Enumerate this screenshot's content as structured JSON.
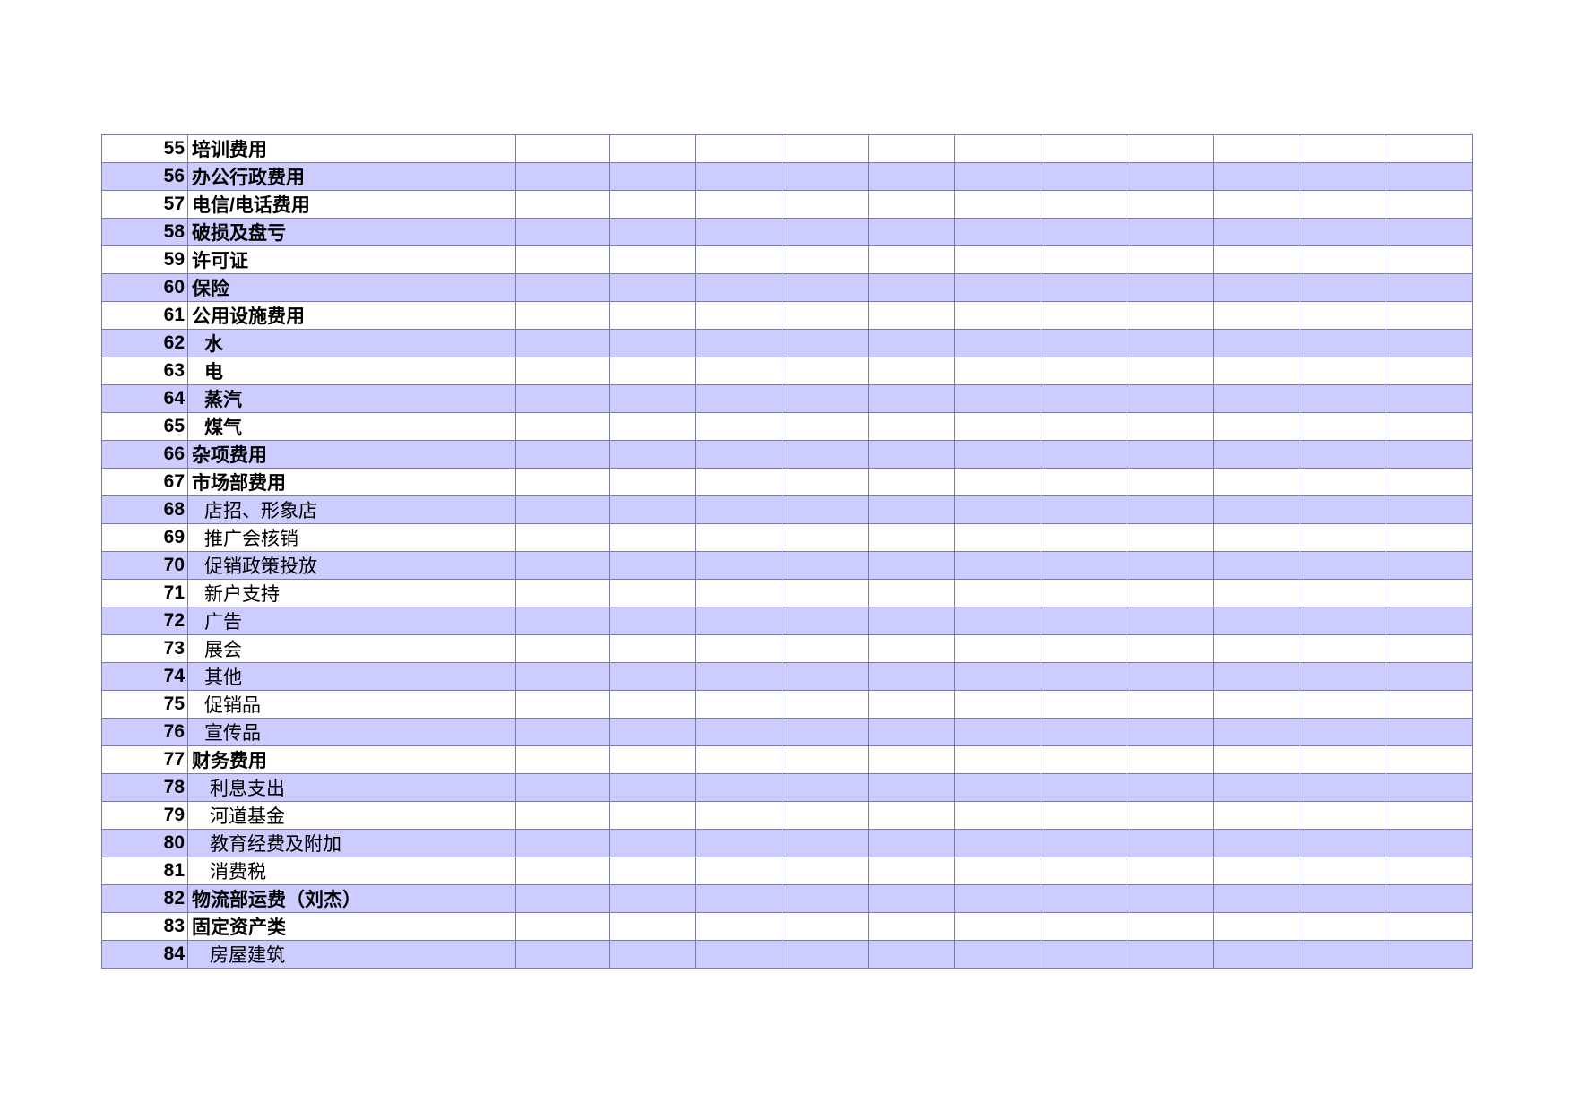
{
  "table": {
    "rows": [
      {
        "no": "55",
        "label": "培训费用"
      },
      {
        "no": "56",
        "label": "办公行政费用"
      },
      {
        "no": "57",
        "label": "电信/电话费用"
      },
      {
        "no": "58",
        "label": "破损及盘亏"
      },
      {
        "no": "59",
        "label": "许可证"
      },
      {
        "no": "60",
        "label": "保险"
      },
      {
        "no": "61",
        "label": "公用设施费用"
      },
      {
        "no": "62",
        "label": "水"
      },
      {
        "no": "63",
        "label": "电"
      },
      {
        "no": "64",
        "label": "蒸汽"
      },
      {
        "no": "65",
        "label": "煤气"
      },
      {
        "no": "66",
        "label": "杂项费用"
      },
      {
        "no": "67",
        "label": "市场部费用"
      },
      {
        "no": "68",
        "label": "店招、形象店"
      },
      {
        "no": "69",
        "label": "推广会核销"
      },
      {
        "no": "70",
        "label": "促销政策投放"
      },
      {
        "no": "71",
        "label": "新户支持"
      },
      {
        "no": "72",
        "label": "广告"
      },
      {
        "no": "73",
        "label": "展会"
      },
      {
        "no": "74",
        "label": "其他"
      },
      {
        "no": "75",
        "label": "促销品"
      },
      {
        "no": "76",
        "label": "宣传品"
      },
      {
        "no": "77",
        "label": "财务费用"
      },
      {
        "no": "78",
        "label": "利息支出"
      },
      {
        "no": "79",
        "label": "河道基金"
      },
      {
        "no": "80",
        "label": "教育经费及附加"
      },
      {
        "no": "81",
        "label": "消费税"
      },
      {
        "no": "82",
        "label": "物流部运费（刘杰）"
      },
      {
        "no": "83",
        "label": "固定资产类"
      },
      {
        "no": "84",
        "label": "房屋建筑"
      }
    ]
  }
}
